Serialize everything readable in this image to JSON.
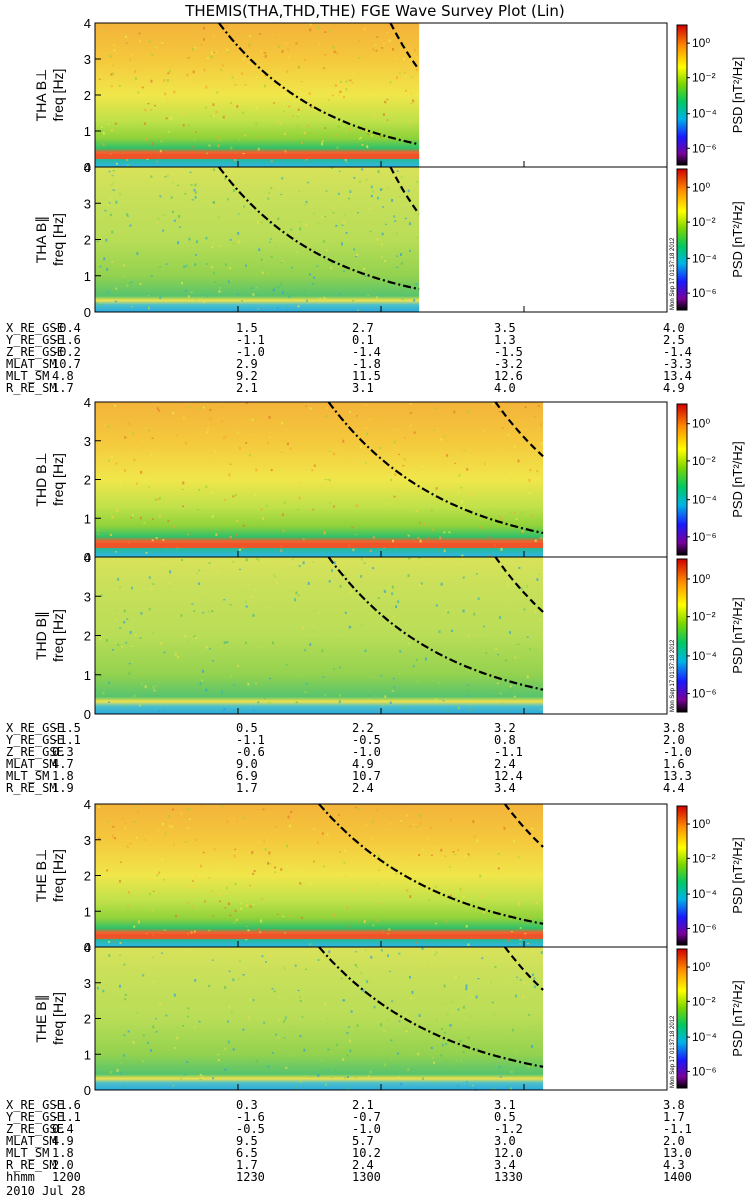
{
  "title": "THEMIS(THA,THD,THE) FGE Wave Survey Plot (Lin)",
  "colorbar": {
    "label": "PSD [nT²/Hz]",
    "ticks": [
      "10⁰",
      "10⁻²",
      "10⁻⁴",
      "10⁻⁶"
    ],
    "stamp": "Mon Sep 17 01:37:18 2012"
  },
  "axis": {
    "ylabel_freq": "freq [Hz]",
    "yticks": [
      "0",
      "1",
      "2",
      "3",
      "4"
    ]
  },
  "chart_data": [
    {
      "type": "heatmap",
      "panel": "THA B⊥",
      "ylabel": "THA B⊥",
      "ylabel_unit": "freq [Hz]",
      "ylim": [
        0,
        4
      ],
      "xlim": [
        "12:00",
        "14:00"
      ],
      "data_end": "13:08",
      "power_band": "0.3 Hz",
      "colorbar_range": [
        "10⁻⁶",
        "10⁰"
      ],
      "curves": [
        {
          "style": "dash-dot",
          "from_hz": 4.0,
          "to_hz": 0.63
        },
        {
          "style": "dashed",
          "from_hz": 4.0,
          "to_hz": 2.7
        }
      ]
    },
    {
      "type": "heatmap",
      "panel": "THA B∥",
      "ylabel": "THA B∥",
      "ylabel_unit": "freq [Hz]",
      "ylim": [
        0,
        4
      ],
      "xlim": [
        "12:00",
        "14:00"
      ],
      "data_end": "13:08",
      "curves": [
        {
          "style": "dash-dot",
          "from_hz": 4.0,
          "to_hz": 0.63
        },
        {
          "style": "dashed",
          "from_hz": 4.0,
          "to_hz": 2.7
        }
      ]
    },
    {
      "type": "heatmap",
      "panel": "THD B⊥",
      "ylabel": "THD B⊥",
      "ylabel_unit": "freq [Hz]",
      "ylim": [
        0,
        4
      ],
      "xlim": [
        "12:00",
        "14:00"
      ],
      "data_end": "13:34",
      "curves": [
        {
          "style": "dash-dot",
          "from_hz": 4.0,
          "to_hz": 0.62
        },
        {
          "style": "dashed",
          "from_hz": 4.0,
          "to_hz": 2.6
        }
      ]
    },
    {
      "type": "heatmap",
      "panel": "THD B∥",
      "ylabel": "THD B∥",
      "ylabel_unit": "freq [Hz]",
      "ylim": [
        0,
        4
      ],
      "xlim": [
        "12:00",
        "14:00"
      ],
      "data_end": "13:34",
      "curves": [
        {
          "style": "dash-dot",
          "from_hz": 4.0,
          "to_hz": 0.62
        },
        {
          "style": "dashed",
          "from_hz": 4.0,
          "to_hz": 2.6
        }
      ]
    },
    {
      "type": "heatmap",
      "panel": "THE B⊥",
      "ylabel": "THE B⊥",
      "ylabel_unit": "freq [Hz]",
      "ylim": [
        0,
        4
      ],
      "xlim": [
        "12:00",
        "14:00"
      ],
      "data_end": "13:34",
      "curves": [
        {
          "style": "dash-dot",
          "from_hz": 4.0,
          "to_hz": 0.65
        },
        {
          "style": "dashed",
          "from_hz": 4.0,
          "to_hz": 2.8
        }
      ]
    },
    {
      "type": "heatmap",
      "panel": "THE B∥",
      "ylabel": "THE B∥",
      "ylabel_unit": "freq [Hz]",
      "ylim": [
        0,
        4
      ],
      "xlim": [
        "12:00",
        "14:00"
      ],
      "data_end": "13:34",
      "curves": [
        {
          "style": "dash-dot",
          "from_hz": 4.0,
          "to_hz": 0.65
        },
        {
          "style": "dashed",
          "from_hz": 4.0,
          "to_hz": 2.8
        }
      ]
    }
  ],
  "orbit_blocks": [
    {
      "rows": [
        {
          "label": "X_RE_GSE",
          "values": [
            "-0.4",
            "1.5",
            "2.7",
            "3.5",
            "4.0"
          ]
        },
        {
          "label": "Y_RE_GSE",
          "values": [
            "-1.6",
            "-1.1",
            "0.1",
            "1.3",
            "2.5"
          ]
        },
        {
          "label": "Z_RE_GSE",
          "values": [
            "-0.2",
            "-1.0",
            "-1.4",
            "-1.5",
            "-1.4"
          ]
        },
        {
          "label": "MLAT_SM",
          "values": [
            "10.7",
            "2.9",
            "-1.8",
            "-3.2",
            "-3.3"
          ]
        },
        {
          "label": "MLT_SM",
          "values": [
            "4.8",
            "9.2",
            "11.5",
            "12.6",
            "13.4"
          ]
        },
        {
          "label": "R_RE_SM",
          "values": [
            "1.7",
            "2.1",
            "3.1",
            "4.0",
            "4.9"
          ]
        }
      ]
    },
    {
      "rows": [
        {
          "label": "X_RE_GSE",
          "values": [
            "-1.5",
            "0.5",
            "2.2",
            "3.2",
            "3.8"
          ]
        },
        {
          "label": "Y_RE_GSE",
          "values": [
            "-1.1",
            "-1.1",
            "-0.5",
            "0.8",
            "2.0"
          ]
        },
        {
          "label": "Z_RE_GSE",
          "values": [
            "0.3",
            "-0.6",
            "-1.0",
            "-1.1",
            "-1.0"
          ]
        },
        {
          "label": "MLAT_SM",
          "values": [
            "4.7",
            "9.0",
            "4.9",
            "2.4",
            "1.6"
          ]
        },
        {
          "label": "MLT_SM",
          "values": [
            "1.8",
            "6.9",
            "10.7",
            "12.4",
            "13.3"
          ]
        },
        {
          "label": "R_RE_SM",
          "values": [
            "1.9",
            "1.7",
            "2.4",
            "3.4",
            "4.4"
          ]
        }
      ]
    },
    {
      "rows": [
        {
          "label": "X_RE_GSE",
          "values": [
            "-1.6",
            "0.3",
            "2.1",
            "3.1",
            "3.8"
          ]
        },
        {
          "label": "Y_RE_GSE",
          "values": [
            "-1.1",
            "-1.6",
            "-0.7",
            "0.5",
            "1.7"
          ]
        },
        {
          "label": "Z_RE_GSE",
          "values": [
            "0.4",
            "-0.5",
            "-1.0",
            "-1.2",
            "-1.1"
          ]
        },
        {
          "label": "MLAT_SM",
          "values": [
            "4.9",
            "9.5",
            "5.7",
            "3.0",
            "2.0"
          ]
        },
        {
          "label": "MLT_SM",
          "values": [
            "1.8",
            "6.5",
            "10.2",
            "12.0",
            "13.0"
          ]
        },
        {
          "label": "R_RE_SM",
          "values": [
            "2.0",
            "1.7",
            "2.4",
            "3.4",
            "4.3"
          ]
        },
        {
          "label": "hhmm",
          "values": [
            "1200",
            "1230",
            "1300",
            "1330",
            "1400"
          ]
        }
      ]
    }
  ],
  "date": "2010 Jul 28"
}
